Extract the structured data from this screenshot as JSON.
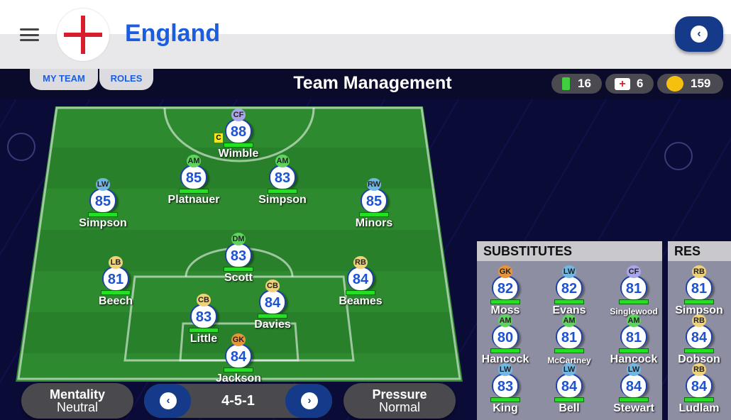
{
  "header": {
    "title": "England",
    "menu_icon": "hamburger-icon",
    "flag": "england-flag",
    "back_icon": "chevron-left-icon"
  },
  "tabs": [
    {
      "label": "MY TEAM"
    },
    {
      "label": "ROLES"
    }
  ],
  "page_title": "Team Management",
  "resources": {
    "energy": "16",
    "medkits": "6",
    "coins": "159"
  },
  "colors": {
    "GK": "#e8943a",
    "LW": "#72b6e2",
    "RW": "#72b6e2",
    "CF": "#a9a6ea",
    "AM": "#5ed45e",
    "DM": "#5ed45e",
    "LB": "#f0d27a",
    "RB": "#f0d27a",
    "CB": "#f0d27a",
    "accent": "#1a5de0",
    "fitness": "#22e022"
  },
  "captain_label": "C",
  "lineup": [
    {
      "pos": "CF",
      "rating": "88",
      "name": "Wimble",
      "captain": true
    },
    {
      "pos": "AM",
      "rating": "85",
      "name": "Platnauer"
    },
    {
      "pos": "AM",
      "rating": "83",
      "name": "Simpson"
    },
    {
      "pos": "LW",
      "rating": "85",
      "name": "Simpson"
    },
    {
      "pos": "RW",
      "rating": "85",
      "name": "Minors"
    },
    {
      "pos": "DM",
      "rating": "83",
      "name": "Scott"
    },
    {
      "pos": "LB",
      "rating": "81",
      "name": "Beech"
    },
    {
      "pos": "RB",
      "rating": "84",
      "name": "Beames"
    },
    {
      "pos": "CB",
      "rating": "83",
      "name": "Little"
    },
    {
      "pos": "CB",
      "rating": "84",
      "name": "Davies"
    },
    {
      "pos": "GK",
      "rating": "84",
      "name": "Jackson"
    }
  ],
  "substitutes": {
    "title": "SUBSTITUTES",
    "players": [
      {
        "pos": "GK",
        "rating": "82",
        "name": "Moss"
      },
      {
        "pos": "LW",
        "rating": "82",
        "name": "Evans"
      },
      {
        "pos": "CF",
        "rating": "81",
        "name": "Singlewood"
      },
      {
        "pos": "AM",
        "rating": "80",
        "name": "Hancock"
      },
      {
        "pos": "AM",
        "rating": "81",
        "name": "McCartney"
      },
      {
        "pos": "AM",
        "rating": "81",
        "name": "Hancock"
      },
      {
        "pos": "LW",
        "rating": "83",
        "name": "King"
      },
      {
        "pos": "LW",
        "rating": "84",
        "name": "Bell"
      },
      {
        "pos": "LW",
        "rating": "84",
        "name": "Stewart"
      }
    ]
  },
  "reserves": {
    "title": "RES",
    "players": [
      {
        "pos": "RB",
        "rating": "81",
        "name": "Simpson"
      },
      {
        "pos": "RB",
        "rating": "84",
        "name": "Dobson"
      },
      {
        "pos": "RB",
        "rating": "84",
        "name": "Ludlam"
      }
    ]
  },
  "controls": {
    "mentality_label": "Mentality",
    "mentality_value": "Neutral",
    "formation": "4-5-1",
    "pressure_label": "Pressure",
    "pressure_value": "Normal"
  }
}
